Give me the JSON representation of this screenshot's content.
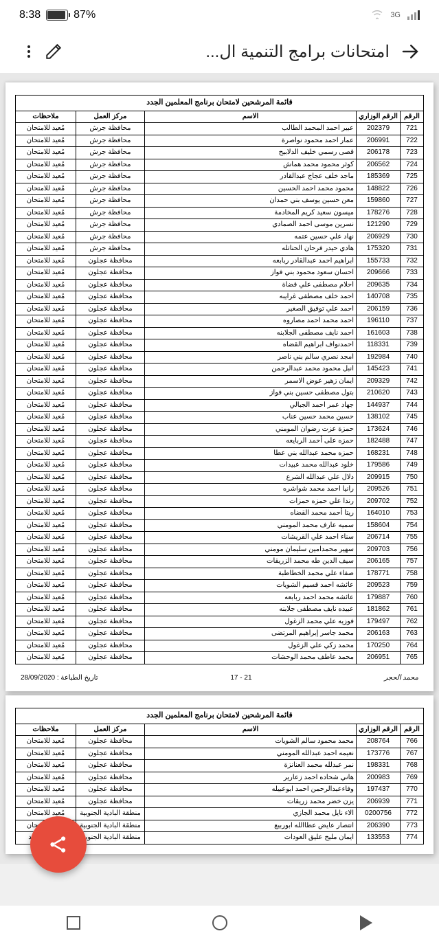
{
  "status": {
    "time": "8:38",
    "battery_pct": "87%",
    "net": "3G"
  },
  "appbar": {
    "title": "امتحانات برامج التنمية ال..."
  },
  "table": {
    "caption": "قائمة المرشحين لامتحان برنامج المعلمين الجدد",
    "headers": {
      "num": "الرقم",
      "id": "الرقم الوزاري",
      "name": "الاسم",
      "loc": "مركز العمل",
      "note": "ملاحظات"
    }
  },
  "footer": {
    "print_date": "تاريخ الطباعة : 28/09/2020",
    "page_num": "21 - 17",
    "sig": "محمد الحجر"
  },
  "rows1": [
    {
      "n": "721",
      "id": "202379",
      "name": "عبير احمد المحمد الطالب",
      "loc": "محافظة جرش",
      "note": "مُعيد للامتحان"
    },
    {
      "n": "722",
      "id": "206991",
      "name": "عمار احمد محمود نواصرة",
      "loc": "محافظة جرش",
      "note": "مُعيد للامتحان"
    },
    {
      "n": "723",
      "id": "206178",
      "name": "قصى رسمي خليف الدلابيح",
      "loc": "محافظة جرش",
      "note": "مُعيد للامتحان"
    },
    {
      "n": "724",
      "id": "206562",
      "name": "كوثر محمود محمد هماش",
      "loc": "محافظة جرش",
      "note": "مُعيد للامتحان"
    },
    {
      "n": "725",
      "id": "185369",
      "name": "ماجد خلف عجاج عبدالقادر",
      "loc": "محافظة جرش",
      "note": "مُعيد للامتحان"
    },
    {
      "n": "726",
      "id": "148822",
      "name": "محمود محمد احمد الحسين",
      "loc": "محافظة جرش",
      "note": "مُعيد للامتحان"
    },
    {
      "n": "727",
      "id": "159860",
      "name": "معن حسين يوسف بني حمدان",
      "loc": "محافظة جرش",
      "note": "مُعيد للامتحان"
    },
    {
      "n": "728",
      "id": "178276",
      "name": "ميسون سعيد كريم المخادمة",
      "loc": "محافظة جرش",
      "note": "مُعيد للامتحان"
    },
    {
      "n": "729",
      "id": "121290",
      "name": "نسرين موسى احمد الصمادي",
      "loc": "محافظة جرش",
      "note": "مُعيد للامتحان"
    },
    {
      "n": "730",
      "id": "206929",
      "name": "نهاد علي حسين عتمه",
      "loc": "محافظة جرش",
      "note": "مُعيد للامتحان"
    },
    {
      "n": "731",
      "id": "175320",
      "name": "هادي حيدر فرحان الحناتله",
      "loc": "محافظة جرش",
      "note": "مُعيد للامتحان"
    },
    {
      "n": "732",
      "id": "155733",
      "name": "ابراهيم احمد عبدالقادر ربابعه",
      "loc": "محافظة عجلون",
      "note": "مُعيد للامتحان"
    },
    {
      "n": "733",
      "id": "209666",
      "name": "احسان سعود محمود بني فواز",
      "loc": "محافظة عجلون",
      "note": "مُعيد للامتحان"
    },
    {
      "n": "734",
      "id": "209635",
      "name": "احلام مصطفى علي قضاة",
      "loc": "محافظة عجلون",
      "note": "مُعيد للامتحان"
    },
    {
      "n": "735",
      "id": "140708",
      "name": "احمد خلف مصطفى غرايبه",
      "loc": "محافظة عجلون",
      "note": "مُعيد للامتحان"
    },
    {
      "n": "736",
      "id": "206159",
      "name": "احمد علي توفيق الصغير",
      "loc": "محافظة عجلون",
      "note": "مُعيد للامتحان"
    },
    {
      "n": "737",
      "id": "196110",
      "name": "احمد محمد احمد مصاروه",
      "loc": "محافظة عجلون",
      "note": "مُعيد للامتحان"
    },
    {
      "n": "738",
      "id": "161603",
      "name": "احمد نايف مصطفى الجلابنه",
      "loc": "محافظة عجلون",
      "note": "مُعيد للامتحان"
    },
    {
      "n": "739",
      "id": "118331",
      "name": "احمدنواف ابراهيم القضاه",
      "loc": "محافظة عجلون",
      "note": "مُعيد للامتحان"
    },
    {
      "n": "740",
      "id": "192984",
      "name": "امجد نصري سالم بني ناصر",
      "loc": "محافظة عجلون",
      "note": "مُعيد للامتحان"
    },
    {
      "n": "741",
      "id": "145423",
      "name": "انبل محمود محمد عبدالرحمن",
      "loc": "محافظة عجلون",
      "note": "مُعيد للامتحان"
    },
    {
      "n": "742",
      "id": "209329",
      "name": "ايمان زهير عوض الاسمر",
      "loc": "محافظة عجلون",
      "note": "مُعيد للامتحان"
    },
    {
      "n": "743",
      "id": "210620",
      "name": "بتول مصطفى حسين بني فواز",
      "loc": "محافظة عجلون",
      "note": "مُعيد للامتحان"
    },
    {
      "n": "744",
      "id": "144937",
      "name": "جهاد عمر احمد الجبالي",
      "loc": "محافظة عجلون",
      "note": "مُعيد للامتحان"
    },
    {
      "n": "745",
      "id": "138102",
      "name": "حسين محمد حسين عناب",
      "loc": "محافظة عجلون",
      "note": "مُعيد للامتحان"
    },
    {
      "n": "746",
      "id": "173624",
      "name": "حمزة عزت رضوان المومني",
      "loc": "محافظة عجلون",
      "note": "مُعيد للامتحان"
    },
    {
      "n": "747",
      "id": "182488",
      "name": "حمزه على أحمد الربايعه",
      "loc": "محافظة عجلون",
      "note": "مُعيد للامتحان"
    },
    {
      "n": "748",
      "id": "168231",
      "name": "حمزه محمد عبدالله بني عطا",
      "loc": "محافظة عجلون",
      "note": "مُعيد للامتحان"
    },
    {
      "n": "749",
      "id": "179586",
      "name": "خلود عبدالله محمد عبيدات",
      "loc": "محافظة عجلون",
      "note": "مُعيد للامتحان"
    },
    {
      "n": "750",
      "id": "209915",
      "name": "دلال علي عبدالله الشرع",
      "loc": "محافظة عجلون",
      "note": "مُعيد للامتحان"
    },
    {
      "n": "751",
      "id": "209526",
      "name": "رانيا احمد محمد شواشره",
      "loc": "محافظة عجلون",
      "note": "مُعيد للامتحان"
    },
    {
      "n": "752",
      "id": "209702",
      "name": "رندا علي حمزه حمزات",
      "loc": "محافظة عجلون",
      "note": "مُعيد للامتحان"
    },
    {
      "n": "753",
      "id": "164010",
      "name": "ريتا أحمد محمد القضاه",
      "loc": "محافظة عجلون",
      "note": "مُعيد للامتحان"
    },
    {
      "n": "754",
      "id": "158604",
      "name": "سميه عارف محمد المومني",
      "loc": "محافظة عجلون",
      "note": "مُعيد للامتحان"
    },
    {
      "n": "755",
      "id": "206714",
      "name": "سناء احمد علي القريشات",
      "loc": "محافظة عجلون",
      "note": "مُعيد للامتحان"
    },
    {
      "n": "756",
      "id": "209703",
      "name": "سهير محمدامين سليمان مومني",
      "loc": "محافظة عجلون",
      "note": "مُعيد للامتحان"
    },
    {
      "n": "757",
      "id": "206165",
      "name": "سيف الدين طه محمد الزريقات",
      "loc": "محافظة عجلون",
      "note": "مُعيد للامتحان"
    },
    {
      "n": "758",
      "id": "178771",
      "name": "صفاء علي محمد الخطاطبة",
      "loc": "محافظة عجلون",
      "note": "مُعيد للامتحان"
    },
    {
      "n": "759",
      "id": "209523",
      "name": "عائشه احمد قسيم الشويات",
      "loc": "محافظة عجلون",
      "note": "مُعيد للامتحان"
    },
    {
      "n": "760",
      "id": "179887",
      "name": "عائشه محمد احمد ربابعه",
      "loc": "محافظة عجلون",
      "note": "مُعيد للامتحان"
    },
    {
      "n": "761",
      "id": "181862",
      "name": "عبيده نايف مصطفى جلابنه",
      "loc": "محافظة عجلون",
      "note": "مُعيد للامتحان"
    },
    {
      "n": "762",
      "id": "179497",
      "name": "فوزيه علي محمد الزغول",
      "loc": "محافظة عجلون",
      "note": "مُعيد للامتحان"
    },
    {
      "n": "763",
      "id": "206163",
      "name": "محمد جاسر إبراهيم المرتضى",
      "loc": "محافظة عجلون",
      "note": "مُعيد للامتحان"
    },
    {
      "n": "764",
      "id": "170250",
      "name": "محمد زكي علي الزغول",
      "loc": "محافظة عجلون",
      "note": "مُعيد للامتحان"
    },
    {
      "n": "765",
      "id": "206951",
      "name": "محمد عاطف محمد الوحشات",
      "loc": "محافظة عجلون",
      "note": "مُعيد للامتحان"
    }
  ],
  "rows2": [
    {
      "n": "766",
      "id": "208764",
      "name": "محمد محمود سالم الشويات",
      "loc": "محافظة عجلون",
      "note": "مُعيد للامتحان"
    },
    {
      "n": "767",
      "id": "173776",
      "name": "نعيمه احمد عبدالله المومني",
      "loc": "محافظة عجلون",
      "note": "مُعيد للامتحان"
    },
    {
      "n": "768",
      "id": "198331",
      "name": "نمر عبدلله محمد العنانزة",
      "loc": "محافظة عجلون",
      "note": "مُعيد للامتحان"
    },
    {
      "n": "769",
      "id": "200983",
      "name": "هاني شحاده احمد زعارير",
      "loc": "محافظة عجلون",
      "note": "مُعيد للامتحان"
    },
    {
      "n": "770",
      "id": "197437",
      "name": "وفاءعبدالرحمن احمد ابوعبيله",
      "loc": "محافظة عجلون",
      "note": "مُعيد للامتحان"
    },
    {
      "n": "771",
      "id": "206939",
      "name": "يزن خضر محمد زريقات",
      "loc": "محافظة عجلون",
      "note": "مُعيد للامتحان"
    },
    {
      "n": "772",
      "id": "0200756",
      "name": "الاء نايل محمد الجازي",
      "loc": "منطقة البادية الجنوبية",
      "note": "مُعيد للامتحان"
    },
    {
      "n": "773",
      "id": "206390",
      "name": "انتصار عايض عطاالله ابوربيع",
      "loc": "منطقة البادية الجنوبية",
      "note": "مُعيد للامتحان"
    },
    {
      "n": "774",
      "id": "133553",
      "name": "ايمان مليح عليق العودات",
      "loc": "منطقة البادية الجنوبية",
      "note": "ممتحن جديد"
    }
  ]
}
